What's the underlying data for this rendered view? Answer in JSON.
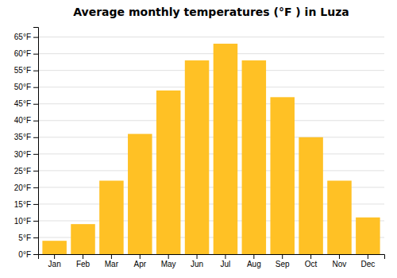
{
  "chart_data": {
    "type": "bar",
    "title": "Average monthly temperatures (°F ) in Luza",
    "categories": [
      "Jan",
      "Feb",
      "Mar",
      "Apr",
      "May",
      "Jun",
      "Jul",
      "Aug",
      "Sep",
      "Oct",
      "Nov",
      "Dec"
    ],
    "values": [
      4,
      9,
      22,
      36,
      49,
      58,
      63,
      58,
      47,
      35,
      22,
      11
    ],
    "color": "#FFC125",
    "ylim": [
      0,
      68
    ],
    "yticks": [
      {
        "value": 0,
        "label": "0°F"
      },
      {
        "value": 5,
        "label": "5°F"
      },
      {
        "value": 10,
        "label": "10°F"
      },
      {
        "value": 15,
        "label": "15°F"
      },
      {
        "value": 20,
        "label": "20°F"
      },
      {
        "value": 25,
        "label": "25°F"
      },
      {
        "value": 30,
        "label": "30°F"
      },
      {
        "value": 35,
        "label": "35°F"
      },
      {
        "value": 40,
        "label": "40°F"
      },
      {
        "value": 45,
        "label": "45°F"
      },
      {
        "value": 50,
        "label": "50°F"
      },
      {
        "value": 55,
        "label": "55°F"
      },
      {
        "value": 60,
        "label": "60°F"
      },
      {
        "value": 65,
        "label": "65°F"
      }
    ],
    "grid": true
  }
}
